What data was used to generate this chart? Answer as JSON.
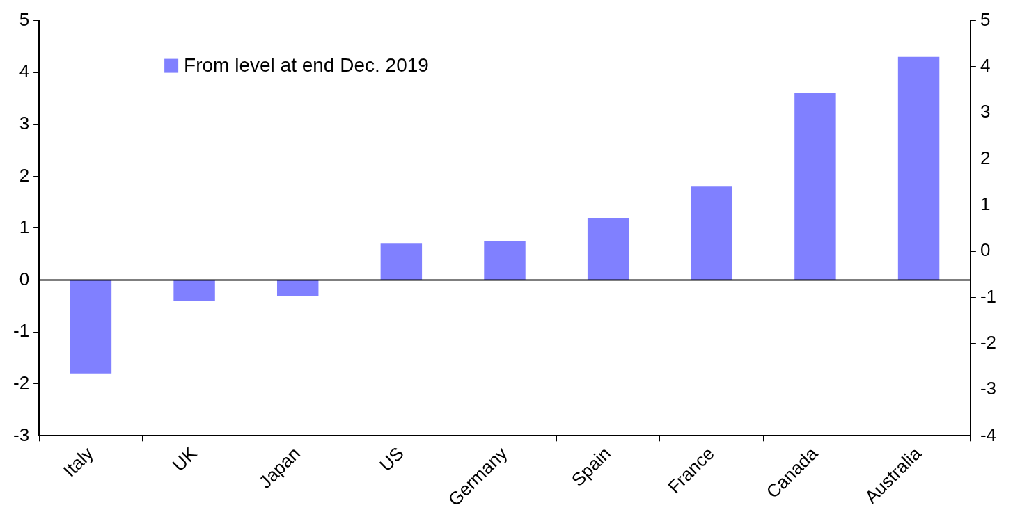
{
  "chart_data": {
    "type": "bar",
    "categories": [
      "Italy",
      "UK",
      "Japan",
      "US",
      "Germany",
      "Spain",
      "France",
      "Canada",
      "Australia"
    ],
    "series": [
      {
        "name": "From level at end Dec. 2019",
        "color": "#8080ff",
        "values": [
          -1.8,
          -0.4,
          -0.3,
          0.7,
          0.75,
          1.2,
          1.8,
          3.6,
          4.3
        ]
      }
    ],
    "ylim": [
      -3,
      5
    ],
    "yticks": [
      -3,
      -2,
      -1,
      0,
      1,
      2,
      3,
      4,
      5
    ],
    "y2lim": [
      -4,
      5
    ],
    "y2ticks": [
      -4,
      -3,
      -2,
      -1,
      0,
      1,
      2,
      3,
      4,
      5
    ],
    "legend": "top left"
  }
}
